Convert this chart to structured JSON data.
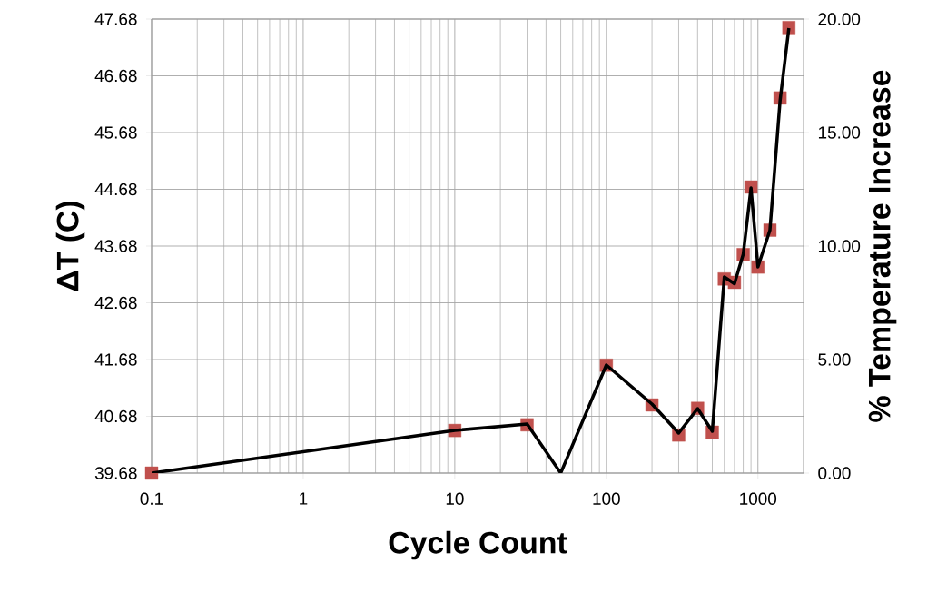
{
  "chart_data": {
    "type": "scatter",
    "xlabel": "Cycle Count",
    "ylabel": "ΔT (C)",
    "y2label": "% Temperature Increase",
    "x": [
      0.1,
      10,
      30,
      50,
      100,
      200,
      300,
      400,
      500,
      600,
      700,
      800,
      900,
      1000,
      1200,
      1400,
      1600
    ],
    "series": [
      {
        "color": "#c0504d",
        "marker": "square",
        "values": [
          39.68,
          40.43,
          40.53,
          null,
          41.58,
          40.88,
          40.35,
          40.82,
          40.4,
          43.1,
          43.04,
          43.53,
          44.72,
          43.31,
          43.96,
          46.29,
          47.53
        ]
      },
      {
        "type": "line",
        "color": "#000000",
        "marker": "none",
        "axis": "y2",
        "values": [
          0,
          1.88,
          2.16,
          0,
          4.76,
          3.04,
          1.76,
          2.84,
          1.84,
          8.64,
          8.34,
          9.64,
          12.56,
          9.08,
          10.7,
          16.4,
          19.6
        ]
      }
    ],
    "log": "x",
    "grid": true,
    "xlim": [
      0.1,
      2000
    ],
    "xticks": [
      0.1,
      1,
      10,
      100,
      1000
    ],
    "ylim": [
      39.68,
      47.68
    ],
    "yticks": [
      39.68,
      40.68,
      41.68,
      42.68,
      43.68,
      44.68,
      45.68,
      46.68,
      47.68
    ],
    "y2lim": [
      0,
      20
    ],
    "y2ticks": [
      {
        "value": 0,
        "label": "0.00"
      },
      {
        "value": 5,
        "label": "5.00"
      },
      {
        "value": 10,
        "label": "10.00"
      },
      {
        "value": 15,
        "label": "15.00"
      },
      {
        "value": 20,
        "label": "20.00"
      }
    ]
  }
}
